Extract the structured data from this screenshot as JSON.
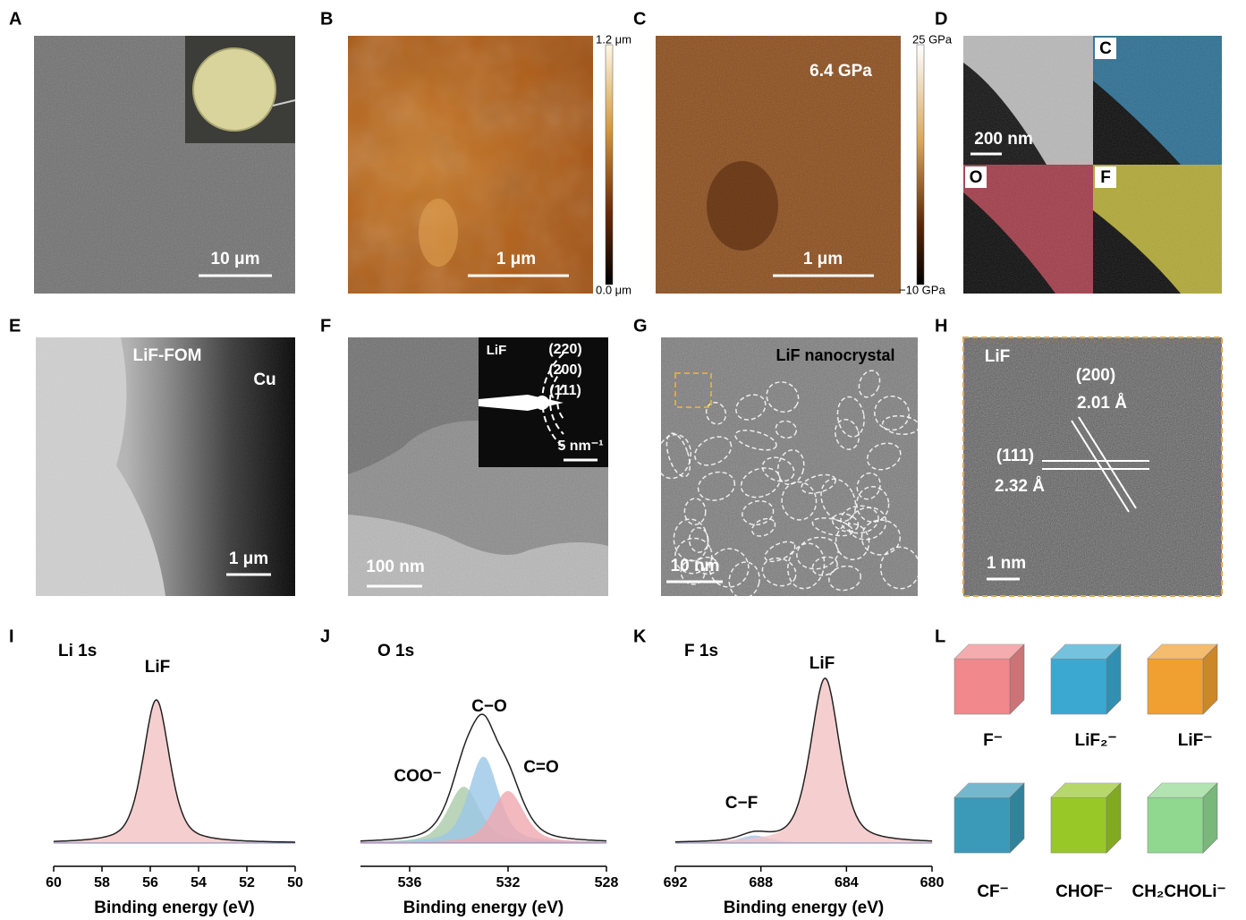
{
  "panels": [
    {
      "label": "A",
      "texts": [
        "10 μm"
      ]
    },
    {
      "label": "B",
      "texts": [
        "1 μm",
        "1.2 μm",
        "0.0 μm"
      ]
    },
    {
      "label": "C",
      "texts": [
        "6.4 GPa",
        "1 μm",
        "25 GPa",
        "−10 GPa"
      ]
    },
    {
      "label": "D",
      "texts": [
        "200 nm",
        "C",
        "O",
        "F"
      ]
    },
    {
      "label": "E",
      "texts": [
        "LiF-FOM",
        "Cu",
        "1 μm"
      ]
    },
    {
      "label": "F",
      "texts": [
        "LiF",
        "(220)",
        "(200)",
        "(111)",
        "5 nm⁻¹",
        "100 nm"
      ]
    },
    {
      "label": "G",
      "texts": [
        "LiF  nanocrystal",
        "10 nm"
      ]
    },
    {
      "label": "H",
      "texts": [
        "LiF",
        "(200)",
        "2.01 Å",
        "(111)",
        "2.32 Å",
        "1 nm"
      ]
    },
    {
      "label": "L",
      "texts": [
        "F⁻",
        "LiF₂⁻",
        "LiF⁻",
        "CF⁻",
        "CHOF⁻",
        "CH₂CHOLi⁻"
      ]
    }
  ],
  "chart_data": [
    {
      "type": "area",
      "label": "I",
      "title": "Li 1s",
      "xlabel": "Binding energy (eV)",
      "xlim": [
        60,
        50
      ],
      "xticks": [
        60,
        58,
        56,
        54,
        52,
        50
      ],
      "peaks": [
        {
          "name": "LiF",
          "center": 55.75,
          "height": 100,
          "fwhm": 1.3,
          "color": "#f3c4c4"
        }
      ]
    },
    {
      "type": "area",
      "label": "J",
      "title": "O 1s",
      "xlabel": "Binding energy (eV)",
      "xlim": [
        538,
        528
      ],
      "xticks": [
        536,
        532,
        528
      ],
      "peaks": [
        {
          "name": "COO⁻",
          "center": 533.8,
          "height": 39,
          "fwhm": 1.5,
          "color": "#a9cba8"
        },
        {
          "name": "C−O",
          "center": 533.0,
          "height": 60,
          "fwhm": 1.4,
          "color": "#9cc8e8"
        },
        {
          "name": "C=O",
          "center": 532.0,
          "height": 36,
          "fwhm": 1.5,
          "color": "#f0a8b0"
        }
      ]
    },
    {
      "type": "area",
      "label": "K",
      "title": "F 1s",
      "xlabel": "Binding energy (eV)",
      "xlim": [
        692,
        680
      ],
      "xticks": [
        692,
        688,
        684,
        680
      ],
      "peaks": [
        {
          "name": "C−F",
          "center": 688.3,
          "height": 5,
          "fwhm": 1.6,
          "color": "#aac4e8"
        },
        {
          "name": "LiF",
          "center": 685.0,
          "height": 115,
          "fwhm": 1.6,
          "color": "#f3c4c4"
        }
      ]
    }
  ]
}
